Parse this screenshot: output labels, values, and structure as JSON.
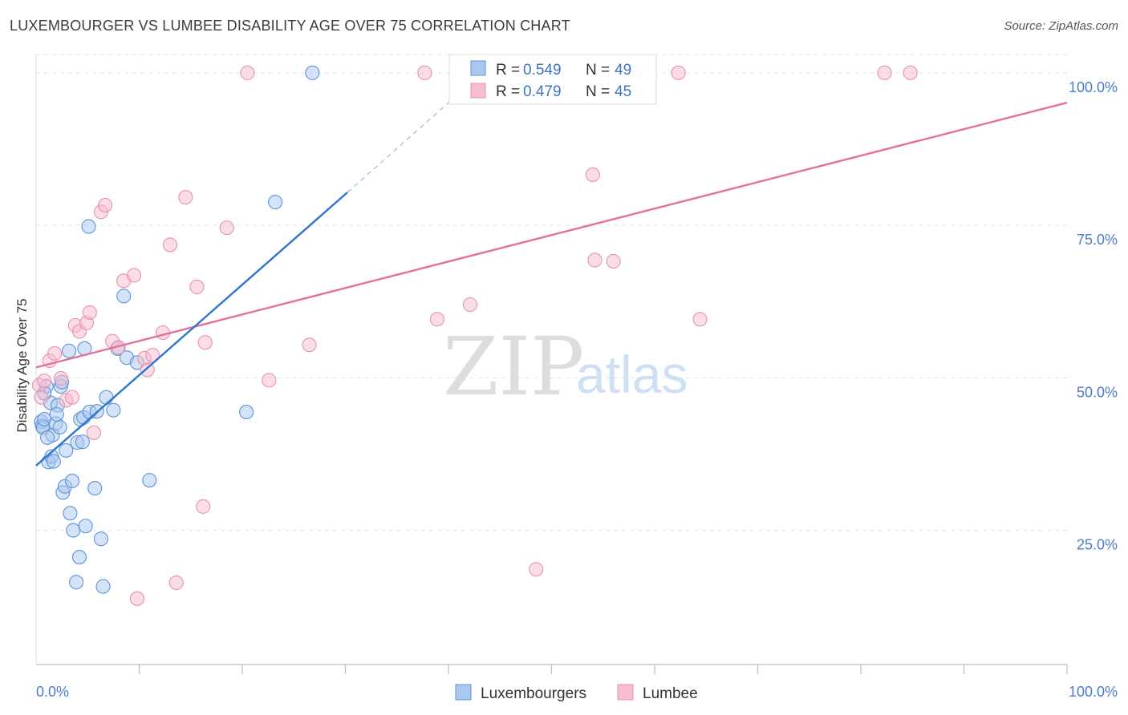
{
  "title": "LUXEMBOURGER VS LUMBEE DISABILITY AGE OVER 75 CORRELATION CHART",
  "source": "Source: ZipAtlas.com",
  "watermark": {
    "zip": "ZIP",
    "atlas": "atlas"
  },
  "colors": {
    "blue_fill": "#a9c8ef",
    "blue_stroke": "#5e93d6",
    "blue_line": "#2f74d0",
    "pink_fill": "#f6bcd0",
    "pink_stroke": "#e891ae",
    "pink_line": "#e4709a",
    "grid": "#e3e3e3",
    "tick_label": "#4a7cc9"
  },
  "legend": {
    "rows": [
      {
        "r_label": "R = ",
        "r_value": "0.549",
        "n_label": "N = ",
        "n_value": "49"
      },
      {
        "r_label": "R = ",
        "r_value": "0.479",
        "n_label": "N = ",
        "n_value": "45"
      }
    ]
  },
  "bottom_legend": [
    "Luxembourgers",
    "Lumbee"
  ],
  "chart_data": {
    "type": "scatter",
    "title": "LUXEMBOURGER VS LUMBEE DISABILITY AGE OVER 75 CORRELATION CHART",
    "xlabel": "",
    "ylabel": "Disability Age Over 75",
    "xlim": [
      0,
      100
    ],
    "ylim": [
      3,
      103
    ],
    "x_tick_labels": [
      "0.0%",
      "100.0%"
    ],
    "y_ticks": [
      25,
      50,
      75,
      100
    ],
    "y_tick_labels": [
      "25.0%",
      "50.0%",
      "75.0%",
      "100.0%"
    ],
    "grid": true,
    "series": [
      {
        "name": "Luxembourgers",
        "R": 0.549,
        "N": 49,
        "trend": {
          "x0": 0,
          "y0": 35.6,
          "x1": 30.2,
          "y1": 80.4,
          "dash_x1": 40.6,
          "dash_y1": 96
        },
        "points": [
          [
            0.5,
            42.8
          ],
          [
            0.6,
            42.1
          ],
          [
            0.7,
            41.8
          ],
          [
            0.8,
            43.2
          ],
          [
            1.0,
            48.6
          ],
          [
            1.2,
            36.2
          ],
          [
            1.4,
            45.9
          ],
          [
            1.5,
            37.1
          ],
          [
            1.6,
            40.6
          ],
          [
            1.7,
            36.3
          ],
          [
            1.9,
            42.5
          ],
          [
            2.1,
            45.5
          ],
          [
            2.3,
            41.9
          ],
          [
            2.4,
            48.6
          ],
          [
            2.5,
            49.3
          ],
          [
            2.6,
            31.2
          ],
          [
            2.8,
            32.2
          ],
          [
            2.9,
            38.1
          ],
          [
            3.2,
            54.4
          ],
          [
            3.3,
            27.8
          ],
          [
            3.5,
            33.1
          ],
          [
            3.6,
            25.0
          ],
          [
            3.9,
            16.5
          ],
          [
            4.0,
            39.4
          ],
          [
            4.2,
            20.6
          ],
          [
            4.3,
            43.2
          ],
          [
            4.5,
            39.5
          ],
          [
            4.6,
            43.5
          ],
          [
            4.7,
            54.8
          ],
          [
            4.8,
            25.7
          ],
          [
            5.1,
            74.8
          ],
          [
            5.2,
            44.4
          ],
          [
            5.7,
            31.9
          ],
          [
            5.9,
            44.5
          ],
          [
            6.3,
            23.6
          ],
          [
            6.5,
            15.8
          ],
          [
            6.8,
            46.8
          ],
          [
            7.5,
            44.7
          ],
          [
            7.9,
            54.8
          ],
          [
            8.5,
            63.4
          ],
          [
            8.8,
            53.3
          ],
          [
            9.8,
            52.5
          ],
          [
            11.0,
            33.2
          ],
          [
            20.4,
            44.4
          ],
          [
            23.2,
            78.8
          ],
          [
            26.8,
            100.0
          ],
          [
            0.8,
            47.5
          ],
          [
            1.1,
            40.2
          ],
          [
            2.0,
            44.0
          ]
        ]
      },
      {
        "name": "Lumbee",
        "R": 0.479,
        "N": 45,
        "trend": {
          "x0": 0,
          "y0": 51.7,
          "x1": 100,
          "y1": 95.1
        },
        "points": [
          [
            0.3,
            48.8
          ],
          [
            0.8,
            49.5
          ],
          [
            1.3,
            52.8
          ],
          [
            1.8,
            54.0
          ],
          [
            2.4,
            49.9
          ],
          [
            2.9,
            46.3
          ],
          [
            3.5,
            46.8
          ],
          [
            3.8,
            58.6
          ],
          [
            4.2,
            57.6
          ],
          [
            4.9,
            59.0
          ],
          [
            5.2,
            60.7
          ],
          [
            5.6,
            41.0
          ],
          [
            6.3,
            77.2
          ],
          [
            6.7,
            78.3
          ],
          [
            7.4,
            56.0
          ],
          [
            8.0,
            55.0
          ],
          [
            8.5,
            65.9
          ],
          [
            9.5,
            66.8
          ],
          [
            9.8,
            13.8
          ],
          [
            10.5,
            53.2
          ],
          [
            10.8,
            51.3
          ],
          [
            11.3,
            53.7
          ],
          [
            12.3,
            57.4
          ],
          [
            13.0,
            71.8
          ],
          [
            13.6,
            16.4
          ],
          [
            14.5,
            79.6
          ],
          [
            15.6,
            64.9
          ],
          [
            16.2,
            28.9
          ],
          [
            16.4,
            55.8
          ],
          [
            18.5,
            74.6
          ],
          [
            20.5,
            100.0
          ],
          [
            22.6,
            49.6
          ],
          [
            26.5,
            55.4
          ],
          [
            37.7,
            100.0
          ],
          [
            38.9,
            59.6
          ],
          [
            42.1,
            62.0
          ],
          [
            48.5,
            18.6
          ],
          [
            54.0,
            83.3
          ],
          [
            54.2,
            69.3
          ],
          [
            56.0,
            69.1
          ],
          [
            62.3,
            100.0
          ],
          [
            64.4,
            59.6
          ],
          [
            82.3,
            100.0
          ],
          [
            84.8,
            100.0
          ],
          [
            0.5,
            46.8
          ]
        ]
      }
    ]
  }
}
